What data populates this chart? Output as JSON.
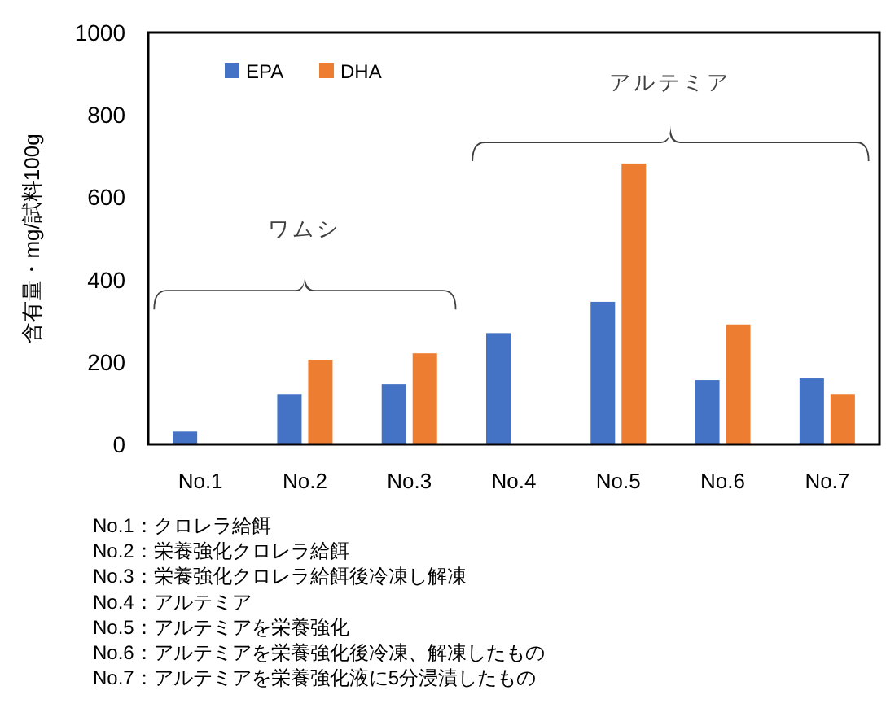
{
  "chart_data": {
    "type": "bar",
    "ylabel": "含有量・mg/試料100g",
    "categories": [
      "No.1",
      "No.2",
      "No.3",
      "No.4",
      "No.5",
      "No.6",
      "No.7"
    ],
    "series": [
      {
        "name": "EPA",
        "color": "#4472c4",
        "values": [
          31,
          122,
          146,
          270,
          346,
          156,
          160
        ]
      },
      {
        "name": "DHA",
        "color": "#ed7d31",
        "values": [
          null,
          205,
          221,
          null,
          682,
          291,
          122
        ]
      }
    ],
    "ylim": [
      0,
      1000
    ],
    "yticks": [
      0,
      200,
      400,
      600,
      800,
      1000
    ],
    "grid": false,
    "legend": "top left",
    "annotations": [
      "ワムシ",
      "アルテミア",
      "No.1：クロレラ給餌",
      "No.2：栄養強化クロレラ給餌",
      "No.3：栄養強化クロレラ給餌後冷凍し解凍",
      "No.4：アルテミア",
      "No.5：アルテミアを栄養強化",
      "No.6：アルテミアを栄養強化後冷凍、解凍したもの",
      "No.7：アルテミアを栄養強化液に5分浸漬したもの"
    ]
  }
}
